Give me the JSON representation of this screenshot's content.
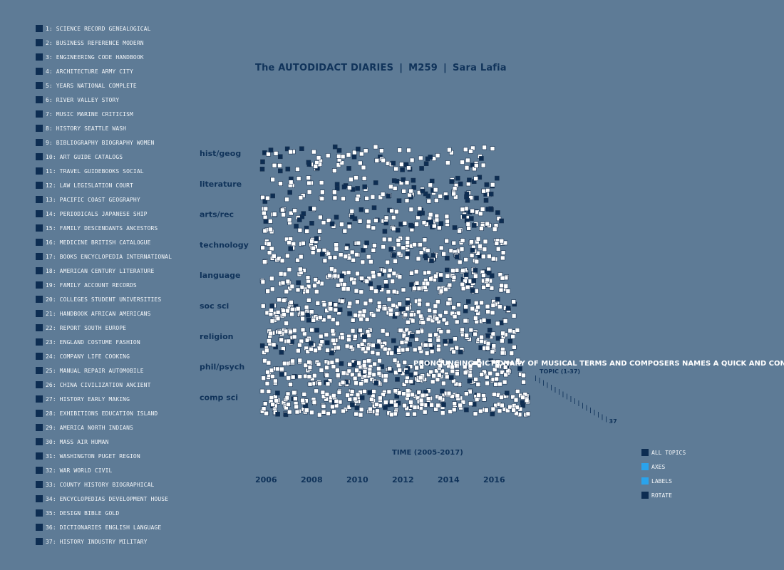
{
  "header": {
    "title": "The AUTODIDACT DIARIES",
    "code": "M259",
    "author": "Sara Lafia",
    "separator": "|"
  },
  "topics": [
    {
      "label": "1: SCIENCE RECORD GENEALOGICAL"
    },
    {
      "label": "2: BUSINESS REFERENCE MODERN"
    },
    {
      "label": "3: ENGINEERING CODE HANDBOOK"
    },
    {
      "label": "4: ARCHITECTURE ARMY CITY"
    },
    {
      "label": "5: YEARS NATIONAL COMPLETE"
    },
    {
      "label": "6: RIVER VALLEY STORY"
    },
    {
      "label": "7: MUSIC MARINE CRITICISM"
    },
    {
      "label": "8: HISTORY SEATTLE WASH"
    },
    {
      "label": "9: BIBLIOGRAPHY BIOGRAPHY WOMEN"
    },
    {
      "label": "10: ART GUIDE CATALOGS"
    },
    {
      "label": "11: TRAVEL GUIDEBOOKS SOCIAL"
    },
    {
      "label": "12: LAW LEGISLATION COURT"
    },
    {
      "label": "13: PACIFIC COAST GEOGRAPHY"
    },
    {
      "label": "14: PERIODICALS JAPANESE SHIP"
    },
    {
      "label": "15: FAMILY DESCENDANTS ANCESTORS"
    },
    {
      "label": "16: MEDICINE BRITISH CATALOGUE"
    },
    {
      "label": "17: BOOKS ENCYCLOPEDIA INTERNATIONAL"
    },
    {
      "label": "18: AMERICAN CENTURY LITERATURE"
    },
    {
      "label": "19: FAMILY ACCOUNT RECORDS"
    },
    {
      "label": "20: COLLEGES STUDENT UNIVERSITIES"
    },
    {
      "label": "21: HANDBOOK AFRICAN AMERICANS"
    },
    {
      "label": "22: REPORT SOUTH EUROPE"
    },
    {
      "label": "23: ENGLAND COSTUME FASHION"
    },
    {
      "label": "24: COMPANY LIFE COOKING"
    },
    {
      "label": "25: MANUAL REPAIR AUTOMOBILE"
    },
    {
      "label": "26: CHINA CIVILIZATION ANCIENT"
    },
    {
      "label": "27: HISTORY EARLY MAKING"
    },
    {
      "label": "28: EXHIBITIONS EDUCATION ISLAND"
    },
    {
      "label": "29: AMERICA NORTH INDIANS"
    },
    {
      "label": "30: MASS AIR HUMAN"
    },
    {
      "label": "31: WASHINGTON PUGET REGION"
    },
    {
      "label": "32: WAR WORLD CIVIL"
    },
    {
      "label": "33: COUNTY HISTORY BIOGRAPHICAL"
    },
    {
      "label": "34: ENCYCLOPEDIAS DEVELOPMENT HOUSE"
    },
    {
      "label": "35: DESIGN BIBLE GOLD"
    },
    {
      "label": "36: DICTIONARIES ENGLISH LANGUAGE"
    },
    {
      "label": "37: HISTORY INDUSTRY MILITARY"
    }
  ],
  "categories": [
    "hist/geog",
    "literature",
    "arts/rec",
    "technology",
    "language",
    "soc sci",
    "religion",
    "phil/psych",
    "comp sci"
  ],
  "years": [
    "2006",
    "2008",
    "2010",
    "2012",
    "2014",
    "2016"
  ],
  "axes": {
    "time_title": "TIME (2005-2017)",
    "topic_title": "TOPIC (1-37)",
    "topic_end_number": "37"
  },
  "hover_title": "PRONOUNCING DICTIONARY OF MUSICAL TERMS AND COMPOSERS NAMES A QUICK AND CON",
  "controls": [
    {
      "label": "ALL TOPICS",
      "color": "#0d2d52"
    },
    {
      "label": "AXES",
      "color": "#2aa3ec"
    },
    {
      "label": "LABELS",
      "color": "#2aa3ec"
    },
    {
      "label": "ROTATE",
      "color": "#0d2d52"
    }
  ],
  "colors": {
    "background": "#5e7b96",
    "text_dark": "#10335a",
    "swatch": "#0d2d52",
    "accent": "#2aa3ec",
    "box_light": "#ffffff",
    "box_dark": "#0d2d52"
  }
}
